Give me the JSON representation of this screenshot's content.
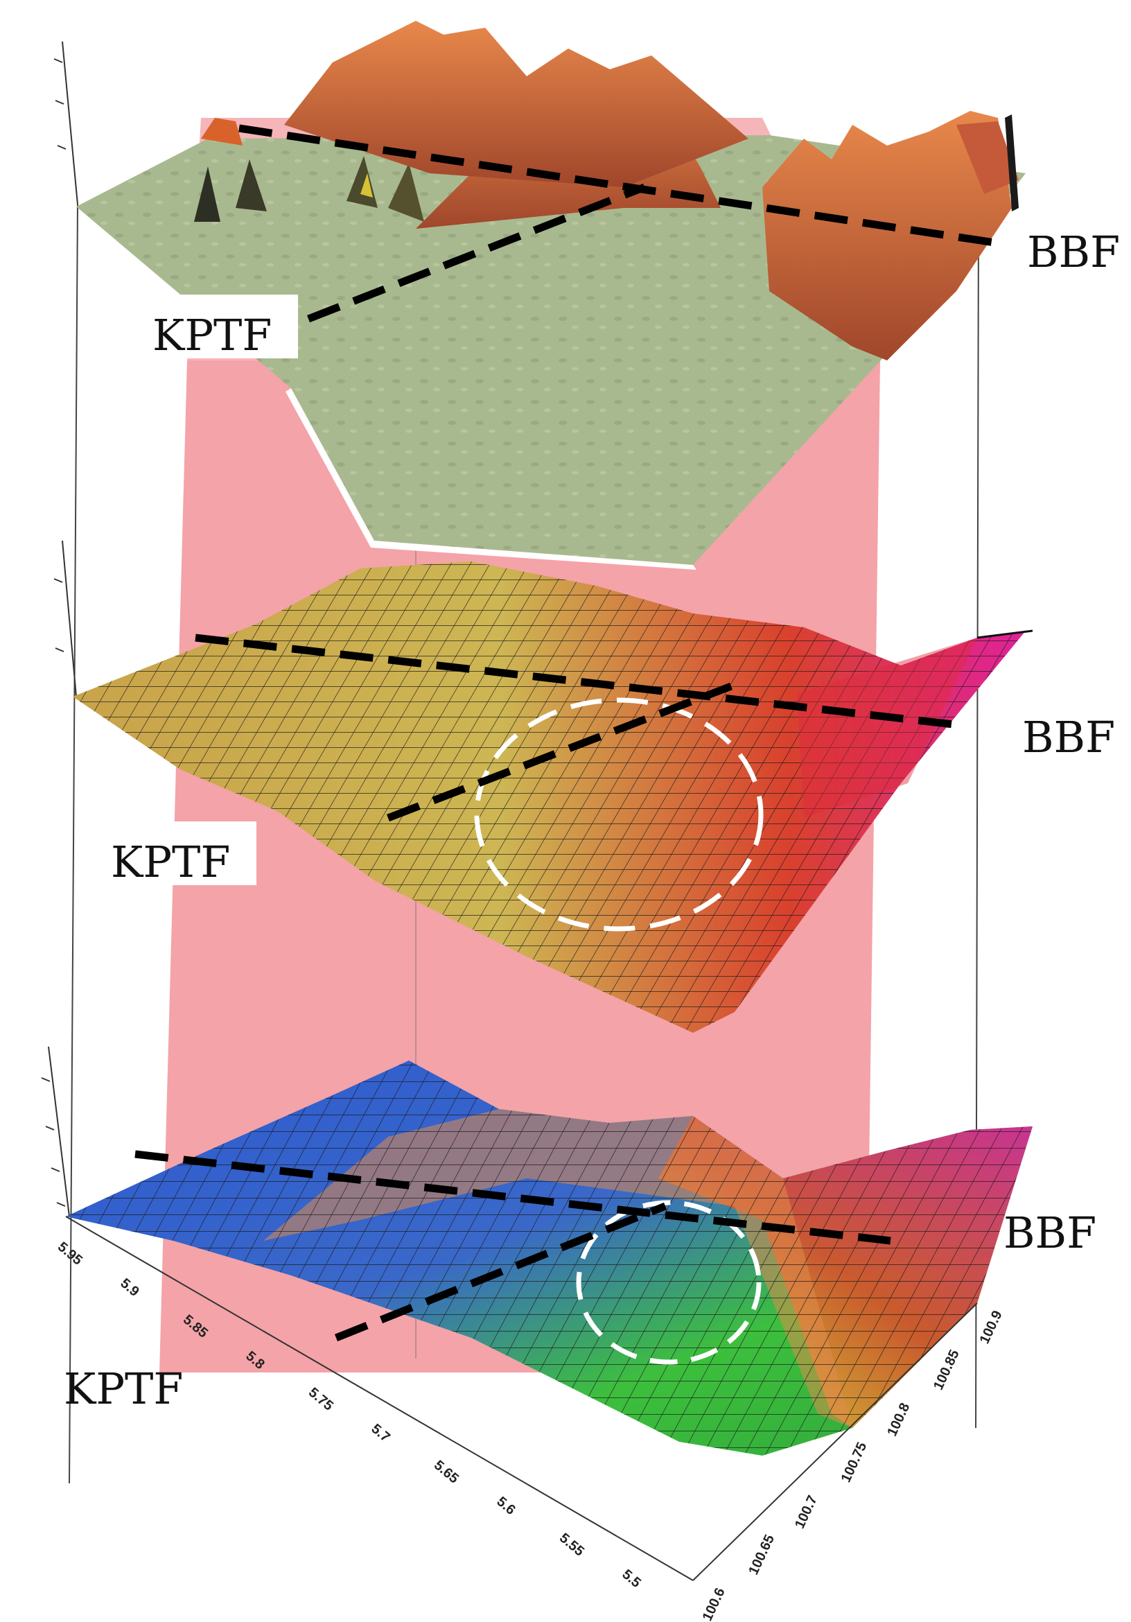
{
  "panels": [
    {
      "fault_left": "KPTF",
      "fault_right": "BBF",
      "surface": "topography"
    },
    {
      "fault_left": "KPTF",
      "fault_right": "BBF",
      "surface": "gravity-anomaly-mesh"
    },
    {
      "fault_left": "KPTF",
      "fault_right": "BBF",
      "surface": "residual-anomaly-mesh"
    }
  ],
  "axes": {
    "latitude_ticks": [
      "5.95",
      "5.9",
      "5.85",
      "5.8",
      "5.75",
      "5.7",
      "5.65",
      "5.6",
      "5.55",
      "5.5"
    ],
    "longitude_ticks": [
      "100.6",
      "100.65",
      "100.7",
      "100.75",
      "100.8",
      "100.85",
      "100.9"
    ]
  },
  "colors": {
    "fault_plane": "#f4a3a8",
    "topo_base": "#a9b98f",
    "topo_peaks": "#d9622a",
    "mesh_yellow": "#c9b64f",
    "mesh_red": "#d9382b",
    "mesh_magenta": "#e0219a",
    "mesh_blue": "#2d5ad0",
    "mesh_green": "#3dbf3d"
  }
}
